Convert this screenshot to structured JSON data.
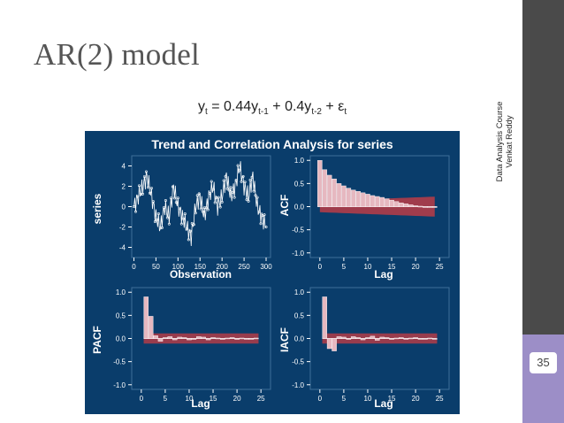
{
  "slide": {
    "title": "AR(2) model",
    "equation": {
      "y": "y",
      "t": "t",
      "eq": " = 0.44y",
      "t1": "t-1",
      "plus": " + 0.4y",
      "t2": "t-2",
      "plus_eps": " + ε",
      "eps_sub": "t"
    },
    "sidebar": {
      "line1": "Data Analysis Course",
      "line2": "Venkat Reddy"
    },
    "page_number": "35"
  },
  "colors": {
    "panel": "#0a3d6b",
    "bar": "#e6b8c0",
    "band": "#a03c4c",
    "text": "#ffffff"
  },
  "figure": {
    "title": "Trend and Correlation Analysis for series",
    "series_panel": {
      "ylabel": "series",
      "xlabel": "Observation",
      "yticks": [
        "4",
        "2",
        "0",
        "-2",
        "-4"
      ],
      "xticks": [
        "0",
        "50",
        "100",
        "150",
        "200",
        "250",
        "300"
      ]
    },
    "acf_panel": {
      "ylabel": "ACF",
      "xlabel": "Lag",
      "yticks": [
        "1.0",
        "0.5",
        "0.0",
        "-0.5",
        "-1.0"
      ],
      "xticks": [
        "0",
        "5",
        "10",
        "15",
        "20",
        "25"
      ]
    },
    "pacf_panel": {
      "ylabel": "PACF",
      "xlabel": "Lag",
      "yticks": [
        "1.0",
        "0.5",
        "0.0",
        "-0.5",
        "-1.0"
      ],
      "xticks": [
        "0",
        "5",
        "10",
        "15",
        "20",
        "25"
      ]
    },
    "iacf_panel": {
      "ylabel": "IACF",
      "xlabel": "Lag",
      "yticks": [
        "1.0",
        "0.5",
        "0.0",
        "-0.5",
        "-1.0"
      ],
      "xticks": [
        "0",
        "5",
        "10",
        "15",
        "20",
        "25"
      ]
    }
  },
  "chart_data": [
    {
      "type": "line",
      "title": "series",
      "xlabel": "Observation",
      "ylabel": "series",
      "xlim": [
        0,
        300
      ],
      "ylim": [
        -5,
        5
      ],
      "x": [
        0,
        10,
        20,
        30,
        40,
        50,
        60,
        70,
        80,
        90,
        100,
        110,
        120,
        130,
        140,
        150,
        160,
        170,
        180,
        190,
        200,
        210,
        220,
        230,
        240,
        250,
        260,
        270,
        280,
        290,
        300
      ],
      "y": [
        0,
        1,
        2,
        3,
        1,
        -1,
        -2,
        0,
        -1,
        2,
        0,
        -1,
        -2,
        -3,
        0,
        1,
        -1,
        1,
        2,
        0,
        1,
        3,
        1,
        2,
        4,
        2,
        1,
        3,
        0,
        -1,
        -2
      ]
    },
    {
      "type": "bar",
      "title": "ACF",
      "xlabel": "Lag",
      "ylabel": "ACF",
      "ylim": [
        -1,
        1
      ],
      "categories": [
        0,
        1,
        2,
        3,
        4,
        5,
        6,
        7,
        8,
        9,
        10,
        11,
        12,
        13,
        14,
        15,
        16,
        17,
        18,
        19,
        20,
        21,
        22,
        23,
        24
      ],
      "values": [
        1.0,
        0.8,
        0.68,
        0.6,
        0.5,
        0.45,
        0.4,
        0.36,
        0.33,
        0.3,
        0.27,
        0.24,
        0.22,
        0.2,
        0.17,
        0.14,
        0.11,
        0.08,
        0.06,
        0.04,
        0.02,
        0.01,
        0.0,
        -0.01,
        -0.01
      ]
    },
    {
      "type": "bar",
      "title": "PACF",
      "xlabel": "Lag",
      "ylabel": "PACF",
      "ylim": [
        -1,
        1
      ],
      "categories": [
        1,
        2,
        3,
        4,
        5,
        6,
        7,
        8,
        9,
        10,
        11,
        12,
        13,
        14,
        15,
        16,
        17,
        18,
        19,
        20,
        21,
        22,
        23,
        24
      ],
      "values": [
        0.9,
        0.48,
        0.06,
        -0.06,
        0.02,
        0.04,
        -0.03,
        0.03,
        0.02,
        -0.03,
        -0.02,
        0.04,
        0.03,
        -0.03,
        0.02,
        0.01,
        -0.02,
        0.01,
        0.02,
        -0.02,
        0.01,
        0.0,
        -0.01,
        0.01
      ]
    },
    {
      "type": "bar",
      "title": "IACF",
      "xlabel": "Lag",
      "ylabel": "IACF",
      "ylim": [
        -1,
        1
      ],
      "categories": [
        1,
        2,
        3,
        4,
        5,
        6,
        7,
        8,
        9,
        10,
        11,
        12,
        13,
        14,
        15,
        16,
        17,
        18,
        19,
        20,
        21,
        22,
        23,
        24
      ],
      "values": [
        0.9,
        -0.22,
        -0.27,
        0.04,
        0.03,
        -0.02,
        0.04,
        0.02,
        -0.03,
        0.02,
        0.05,
        -0.04,
        0.03,
        0.02,
        -0.02,
        0.01,
        0.02,
        -0.01,
        0.01,
        0.02,
        -0.01,
        0.0,
        0.01,
        0.0
      ]
    }
  ]
}
